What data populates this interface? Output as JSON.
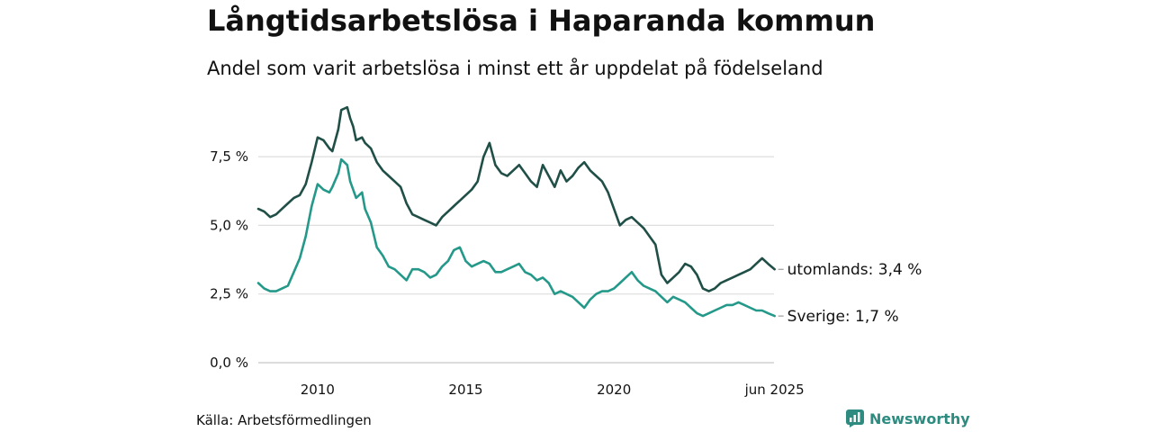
{
  "header": {
    "title": "Långtidsarbetslösa i Haparanda kommun",
    "subtitle": "Andel som varit arbetslösa i minst ett år uppdelat på födelseland"
  },
  "footer": {
    "source": "Källa: Arbetsförmedlingen",
    "brand": "Newsworthy",
    "brand_color": "#2e8b80"
  },
  "chart_data": {
    "type": "line",
    "x_unit": "year",
    "xlim": [
      2008.0,
      2025.4
    ],
    "ylim": [
      0,
      9.6
    ],
    "y_ticks": [
      0,
      2.5,
      5.0,
      7.5
    ],
    "y_tick_labels": [
      "0,0 %",
      "2,5 %",
      "5,0 %",
      "7,5 %"
    ],
    "x_ticks": [
      2010,
      2015,
      2020,
      2025.42
    ],
    "x_tick_labels": [
      "2010",
      "2015",
      "2020",
      "jun 2025"
    ],
    "grid": "horizontal",
    "series": [
      {
        "name": "utomlands",
        "end_label": "utomlands: 3,4 %",
        "color": "#1f4f47",
        "x": [
          2008.0,
          2008.2,
          2008.4,
          2008.6,
          2008.8,
          2009.0,
          2009.2,
          2009.4,
          2009.6,
          2009.8,
          2010.0,
          2010.2,
          2010.4,
          2010.5,
          2010.7,
          2010.8,
          2011.0,
          2011.1,
          2011.2,
          2011.3,
          2011.5,
          2011.6,
          2011.8,
          2012.0,
          2012.2,
          2012.4,
          2012.6,
          2012.8,
          2013.0,
          2013.2,
          2013.4,
          2013.6,
          2013.8,
          2014.0,
          2014.2,
          2014.4,
          2014.6,
          2014.8,
          2015.0,
          2015.2,
          2015.4,
          2015.6,
          2015.8,
          2016.0,
          2016.2,
          2016.4,
          2016.6,
          2016.8,
          2017.0,
          2017.2,
          2017.4,
          2017.6,
          2017.8,
          2018.0,
          2018.2,
          2018.4,
          2018.6,
          2018.8,
          2019.0,
          2019.2,
          2019.4,
          2019.6,
          2019.8,
          2020.0,
          2020.2,
          2020.4,
          2020.6,
          2020.8,
          2021.0,
          2021.2,
          2021.4,
          2021.6,
          2021.8,
          2022.0,
          2022.2,
          2022.4,
          2022.6,
          2022.8,
          2023.0,
          2023.2,
          2023.4,
          2023.6,
          2023.8,
          2024.0,
          2024.2,
          2024.4,
          2024.6,
          2024.8,
          2025.0,
          2025.2,
          2025.42
        ],
        "values": [
          5.6,
          5.5,
          5.3,
          5.4,
          5.6,
          5.8,
          6.0,
          6.1,
          6.5,
          7.3,
          8.2,
          8.1,
          7.8,
          7.7,
          8.5,
          9.2,
          9.3,
          8.9,
          8.6,
          8.1,
          8.2,
          8.0,
          7.8,
          7.3,
          7.0,
          6.8,
          6.6,
          6.4,
          5.8,
          5.4,
          5.3,
          5.2,
          5.1,
          5.0,
          5.3,
          5.5,
          5.7,
          5.9,
          6.1,
          6.3,
          6.6,
          7.5,
          8.0,
          7.2,
          6.9,
          6.8,
          7.0,
          7.2,
          6.9,
          6.6,
          6.4,
          7.2,
          6.8,
          6.4,
          7.0,
          6.6,
          6.8,
          7.1,
          7.3,
          7.0,
          6.8,
          6.6,
          6.2,
          5.6,
          5.0,
          5.2,
          5.3,
          5.1,
          4.9,
          4.6,
          4.3,
          3.2,
          2.9,
          3.1,
          3.3,
          3.6,
          3.5,
          3.2,
          2.7,
          2.6,
          2.7,
          2.9,
          3.0,
          3.1,
          3.2,
          3.3,
          3.4,
          3.6,
          3.8,
          3.6,
          3.4
        ]
      },
      {
        "name": "Sverige",
        "end_label": "Sverige: 1,7 %",
        "color": "#24998a",
        "x": [
          2008.0,
          2008.2,
          2008.4,
          2008.6,
          2008.8,
          2009.0,
          2009.2,
          2009.4,
          2009.6,
          2009.8,
          2010.0,
          2010.2,
          2010.4,
          2010.5,
          2010.7,
          2010.8,
          2011.0,
          2011.1,
          2011.2,
          2011.3,
          2011.5,
          2011.6,
          2011.8,
          2012.0,
          2012.2,
          2012.4,
          2012.6,
          2012.8,
          2013.0,
          2013.2,
          2013.4,
          2013.6,
          2013.8,
          2014.0,
          2014.2,
          2014.4,
          2014.6,
          2014.8,
          2015.0,
          2015.2,
          2015.4,
          2015.6,
          2015.8,
          2016.0,
          2016.2,
          2016.4,
          2016.6,
          2016.8,
          2017.0,
          2017.2,
          2017.4,
          2017.6,
          2017.8,
          2018.0,
          2018.2,
          2018.4,
          2018.6,
          2018.8,
          2019.0,
          2019.2,
          2019.4,
          2019.6,
          2019.8,
          2020.0,
          2020.2,
          2020.4,
          2020.6,
          2020.8,
          2021.0,
          2021.2,
          2021.4,
          2021.6,
          2021.8,
          2022.0,
          2022.2,
          2022.4,
          2022.6,
          2022.8,
          2023.0,
          2023.2,
          2023.4,
          2023.6,
          2023.8,
          2024.0,
          2024.2,
          2024.4,
          2024.6,
          2024.8,
          2025.0,
          2025.2,
          2025.42
        ],
        "values": [
          2.9,
          2.7,
          2.6,
          2.6,
          2.7,
          2.8,
          3.3,
          3.8,
          4.6,
          5.7,
          6.5,
          6.3,
          6.2,
          6.4,
          6.9,
          7.4,
          7.2,
          6.6,
          6.3,
          6.0,
          6.2,
          5.6,
          5.1,
          4.2,
          3.9,
          3.5,
          3.4,
          3.2,
          3.0,
          3.4,
          3.4,
          3.3,
          3.1,
          3.2,
          3.5,
          3.7,
          4.1,
          4.2,
          3.7,
          3.5,
          3.6,
          3.7,
          3.6,
          3.3,
          3.3,
          3.4,
          3.5,
          3.6,
          3.3,
          3.2,
          3.0,
          3.1,
          2.9,
          2.5,
          2.6,
          2.5,
          2.4,
          2.2,
          2.0,
          2.3,
          2.5,
          2.6,
          2.6,
          2.7,
          2.9,
          3.1,
          3.3,
          3.0,
          2.8,
          2.7,
          2.6,
          2.4,
          2.2,
          2.4,
          2.3,
          2.2,
          2.0,
          1.8,
          1.7,
          1.8,
          1.9,
          2.0,
          2.1,
          2.1,
          2.2,
          2.1,
          2.0,
          1.9,
          1.9,
          1.8,
          1.7
        ]
      }
    ]
  }
}
